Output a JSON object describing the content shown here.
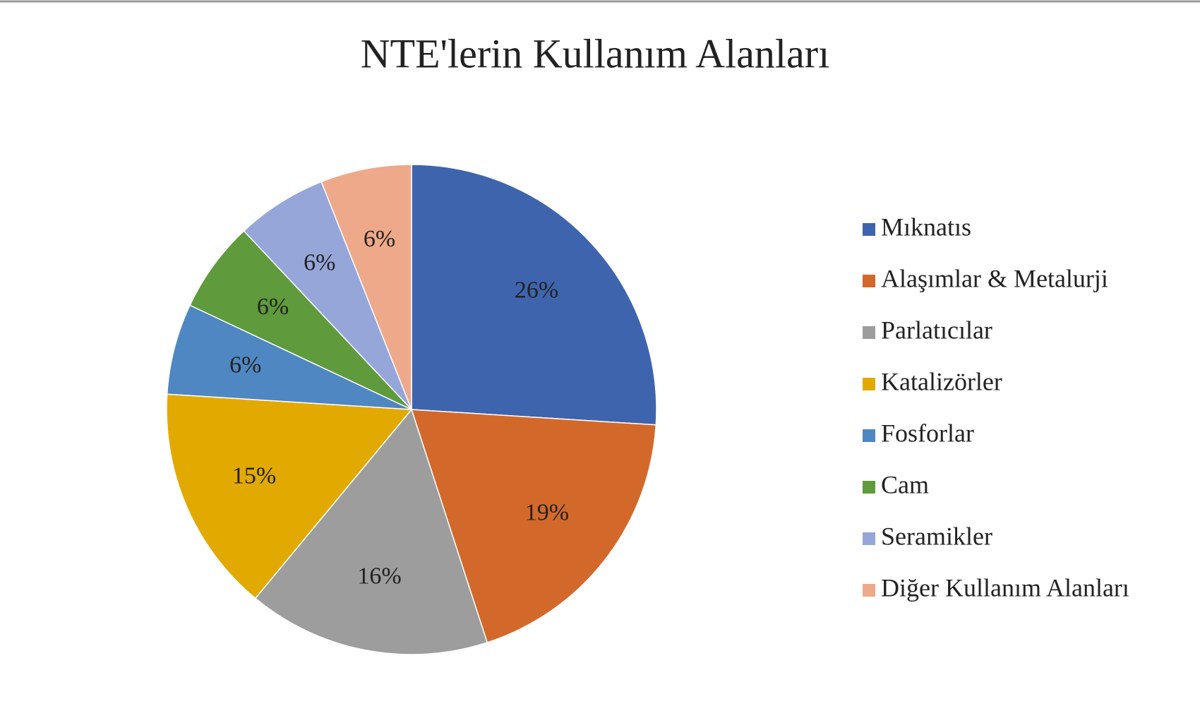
{
  "chart_data": {
    "type": "pie",
    "title": "NTE'lerin Kullanım Alanları",
    "categories": [
      "Mıknatıs",
      "Alaşımlar & Metalurji",
      "Parlatıcılar",
      "Katalizörler",
      "Fosforlar",
      "Cam",
      "Seramikler",
      "Diğer Kullanım Alanları"
    ],
    "values": [
      26,
      19,
      16,
      15,
      6,
      6,
      6,
      6
    ],
    "value_labels": [
      "26%",
      "19%",
      "16%",
      "15%",
      "6%",
      "6%",
      "6%",
      "6%"
    ],
    "colors": [
      "#3e64ae",
      "#d2692b",
      "#9d9d9d",
      "#e2aa00",
      "#4f87c2",
      "#5f9a3c",
      "#97a6d9",
      "#eea98a"
    ],
    "legend": "right"
  }
}
